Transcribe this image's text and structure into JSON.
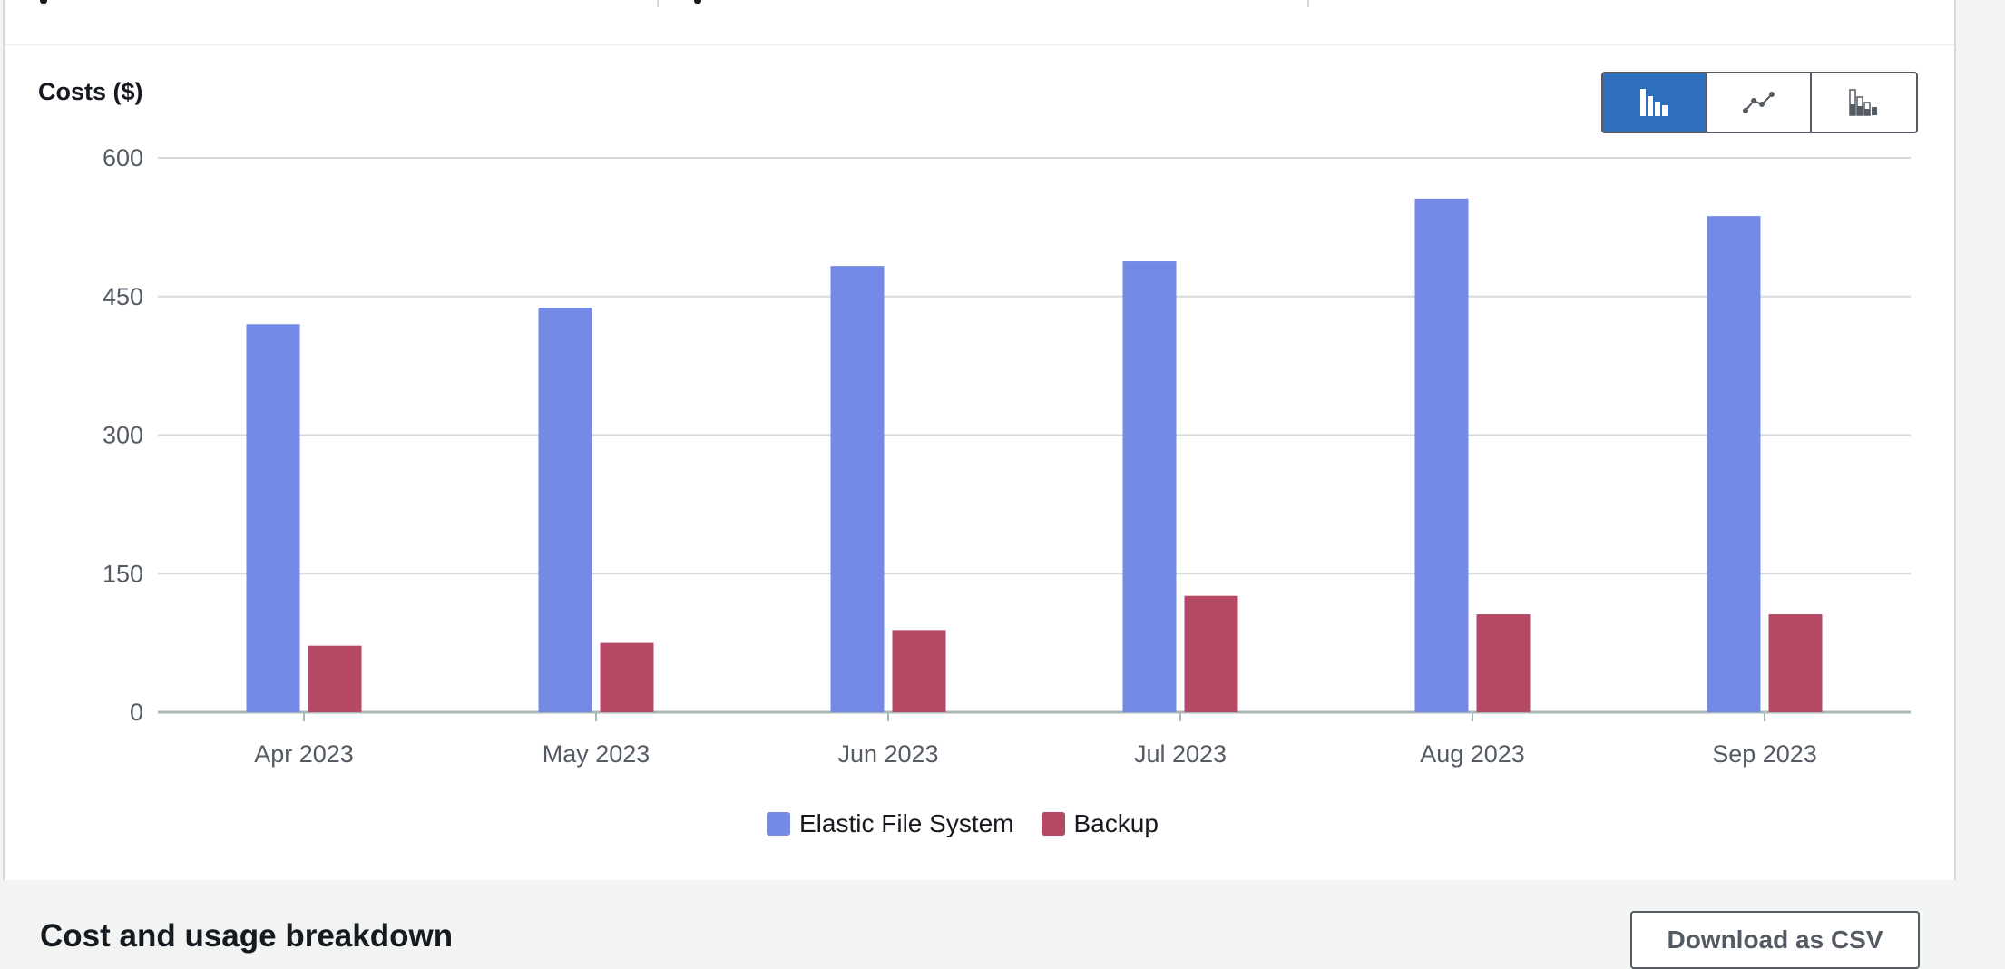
{
  "chart_card": {
    "title": "Costs ($)",
    "view_toggle": {
      "options": [
        {
          "icon": "bar-chart-icon",
          "label": "Bar chart",
          "active": true
        },
        {
          "icon": "line-chart-icon",
          "label": "Line chart",
          "active": false
        },
        {
          "icon": "stacked-bar-chart-icon",
          "label": "Stacked bar chart",
          "active": false
        }
      ]
    }
  },
  "chart_data": {
    "type": "bar",
    "title": "Costs ($)",
    "xlabel": "",
    "ylabel": "Costs ($)",
    "categories": [
      "Apr 2023",
      "May 2023",
      "Jun 2023",
      "Jul 2023",
      "Aug 2023",
      "Sep 2023"
    ],
    "series": [
      {
        "name": "Elastic File System",
        "color": "#7389e5",
        "values": [
          420,
          438,
          483,
          488,
          556,
          537
        ]
      },
      {
        "name": "Backup",
        "color": "#b44865",
        "values": [
          72,
          75,
          89,
          126,
          106,
          106
        ]
      }
    ],
    "ylim": [
      0,
      600
    ],
    "yticks": [
      0,
      150,
      300,
      450,
      600
    ],
    "grid": true,
    "legend_position": "bottom-center"
  },
  "breakdown": {
    "title": "Cost and usage breakdown",
    "download_label": "Download as CSV"
  }
}
